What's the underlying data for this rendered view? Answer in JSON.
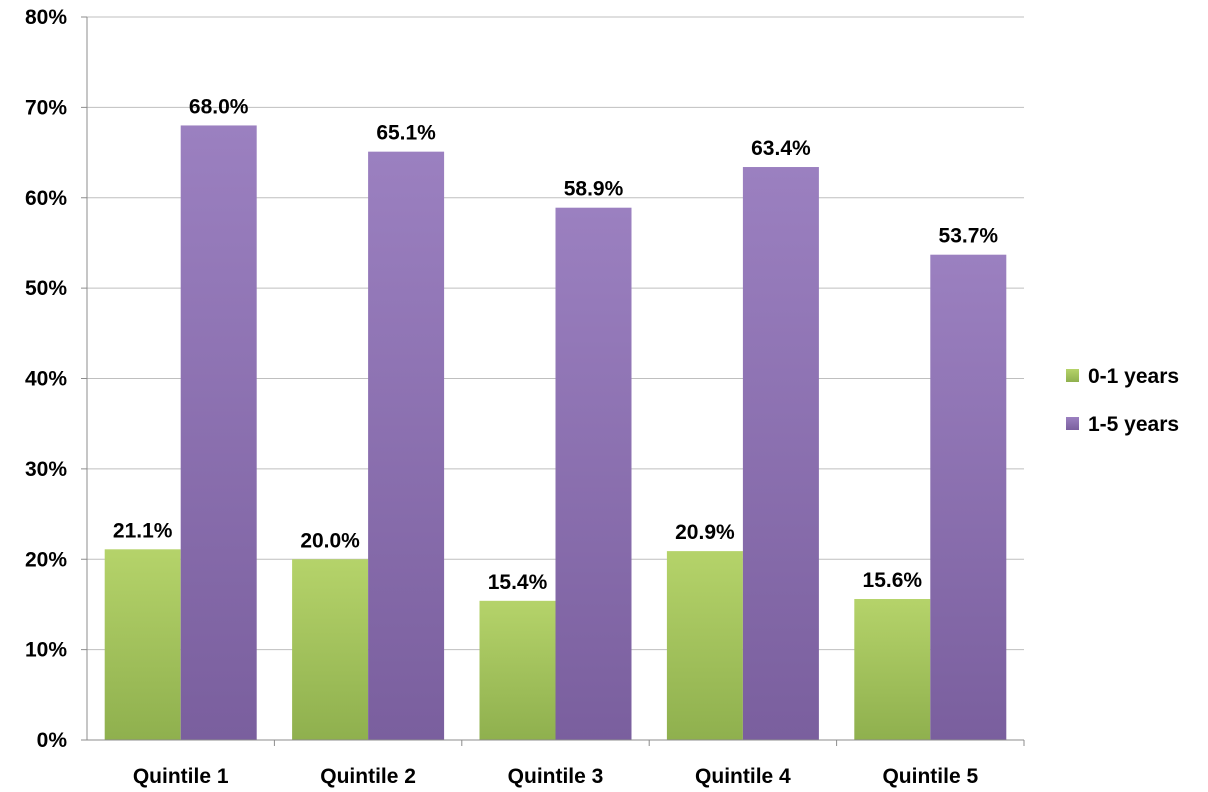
{
  "chart_data": {
    "type": "bar",
    "title": "",
    "xlabel": "",
    "ylabel": "",
    "categories": [
      "Quintile 1",
      "Quintile 2",
      "Quintile 3",
      "Quintile 4",
      "Quintile 5"
    ],
    "series": [
      {
        "name": "0-1 years",
        "values": [
          21.1,
          20.0,
          15.4,
          20.9,
          15.6
        ],
        "labels": [
          "21.1%",
          "20.0%",
          "15.4%",
          "20.9%",
          "15.6%"
        ],
        "color": "#9bbb59"
      },
      {
        "name": "1-5 years",
        "values": [
          68.0,
          65.1,
          58.9,
          63.4,
          53.7
        ],
        "labels": [
          "68.0%",
          "65.1%",
          "58.9%",
          "63.4%",
          "53.7%"
        ],
        "color": "#8064a2"
      }
    ],
    "ylim": [
      0,
      80
    ],
    "yticks": [
      "0%",
      "10%",
      "20%",
      "30%",
      "40%",
      "50%",
      "60%",
      "70%",
      "80%"
    ],
    "grid": true,
    "legend": "right"
  }
}
